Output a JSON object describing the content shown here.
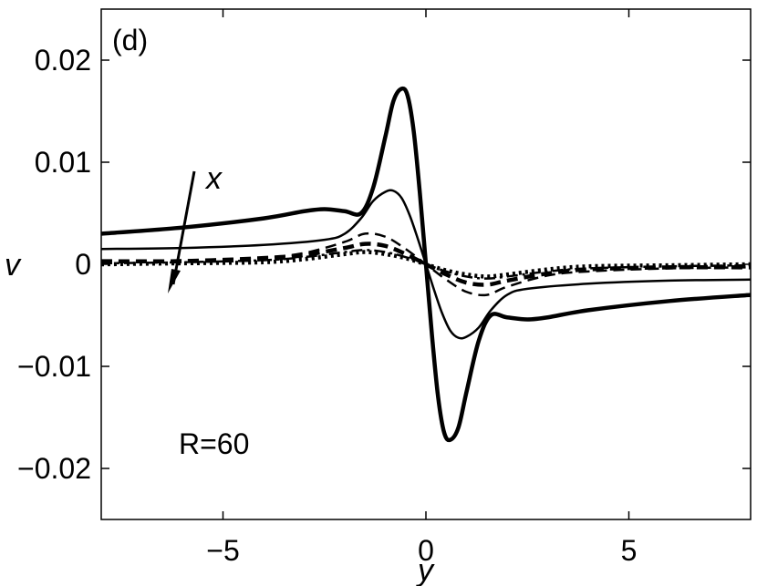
{
  "chart_data": {
    "type": "line",
    "xlabel": "y",
    "ylabel": "v",
    "xlim": [
      -8,
      8
    ],
    "ylim": [
      -0.025,
      0.025
    ],
    "xticks": [
      -5,
      0,
      5
    ],
    "xtick_labels": [
      "−5",
      "0",
      "5"
    ],
    "yticks": [
      0.02,
      0.01,
      0,
      -0.01,
      -0.02
    ],
    "ytick_labels": [
      "0.02",
      "0.01",
      "0",
      "−0.01",
      "−0.02"
    ],
    "grid": false,
    "annotations": {
      "panel": "(d)",
      "arrow_label": "x",
      "reynolds": "R=60"
    },
    "series": [
      {
        "style": "thick-solid",
        "x": [
          -8,
          -6,
          -4,
          -3,
          -2.5,
          -2,
          -1.6,
          -1.3,
          -1.0,
          -0.8,
          -0.6,
          -0.45,
          -0.3,
          -0.15,
          0,
          0.15,
          0.3,
          0.45,
          0.6,
          0.8,
          1.0,
          1.3,
          1.6,
          2,
          2.5,
          3,
          4,
          6,
          8
        ],
        "y": [
          0.003,
          0.0036,
          0.0045,
          0.0052,
          0.0054,
          0.0052,
          0.005,
          0.0075,
          0.0125,
          0.016,
          0.0172,
          0.0165,
          0.013,
          0.007,
          0,
          -0.007,
          -0.013,
          -0.0165,
          -0.0172,
          -0.016,
          -0.0125,
          -0.0075,
          -0.005,
          -0.0052,
          -0.0054,
          -0.0052,
          -0.0045,
          -0.0036,
          -0.003
        ]
      },
      {
        "style": "thin-solid",
        "x": [
          -8,
          -6,
          -4,
          -2.5,
          -2,
          -1.6,
          -1.3,
          -1.0,
          -0.8,
          -0.6,
          -0.4,
          -0.2,
          0,
          0.2,
          0.4,
          0.6,
          0.8,
          1.0,
          1.3,
          1.6,
          2,
          2.5,
          4,
          6,
          8
        ],
        "y": [
          0.0015,
          0.0016,
          0.0019,
          0.0024,
          0.003,
          0.0045,
          0.0062,
          0.0071,
          0.0072,
          0.0065,
          0.0048,
          0.0025,
          0,
          -0.0025,
          -0.0048,
          -0.0065,
          -0.0072,
          -0.0071,
          -0.0062,
          -0.0045,
          -0.003,
          -0.0024,
          -0.0019,
          -0.0016,
          -0.0015
        ]
      },
      {
        "style": "thin-dashed",
        "x": [
          -8,
          -6,
          -4,
          -3,
          -2,
          -1.5,
          -1.0,
          -0.5,
          0,
          0.5,
          1.0,
          1.5,
          2,
          3,
          4,
          6,
          8
        ],
        "y": [
          0.0003,
          0.0004,
          0.0007,
          0.0011,
          0.0022,
          0.003,
          0.0027,
          0.0015,
          0,
          -0.0015,
          -0.0027,
          -0.003,
          -0.0022,
          -0.0011,
          -0.0007,
          -0.0004,
          -0.0003
        ]
      },
      {
        "style": "thick-dashed",
        "x": [
          -8,
          -6,
          -4,
          -3,
          -2,
          -1.5,
          -1.0,
          -0.5,
          0,
          0.5,
          1.0,
          1.5,
          2,
          3,
          4,
          6,
          8
        ],
        "y": [
          0.0003,
          0.0003,
          0.0005,
          0.0009,
          0.0016,
          0.002,
          0.0018,
          0.001,
          0,
          -0.001,
          -0.0018,
          -0.002,
          -0.0016,
          -0.0009,
          -0.0005,
          -0.0003,
          -0.0003
        ]
      },
      {
        "style": "thin-dashdot",
        "x": [
          -8,
          -6,
          -4,
          -3,
          -2,
          -1.5,
          -1.0,
          -0.5,
          0,
          0.5,
          1.0,
          1.5,
          2,
          3,
          4,
          6,
          8
        ],
        "y": [
          0.0001,
          0.0002,
          0.0004,
          0.0007,
          0.0012,
          0.0014,
          0.0012,
          0.0007,
          0,
          -0.0007,
          -0.0012,
          -0.0014,
          -0.0012,
          -0.0007,
          -0.0004,
          -0.0002,
          -0.0001
        ]
      },
      {
        "style": "thick-dotted",
        "x": [
          -8,
          -6,
          -4,
          -3,
          -2,
          -1.5,
          -1.0,
          -0.5,
          0,
          0.5,
          1.0,
          1.5,
          2,
          3,
          4,
          6,
          8
        ],
        "y": [
          0.0,
          0.0001,
          0.0002,
          0.0005,
          0.001,
          0.0012,
          0.001,
          0.0006,
          0,
          -0.0006,
          -0.001,
          -0.0012,
          -0.001,
          -0.0005,
          -0.0002,
          -0.0001,
          0.0
        ]
      }
    ]
  }
}
